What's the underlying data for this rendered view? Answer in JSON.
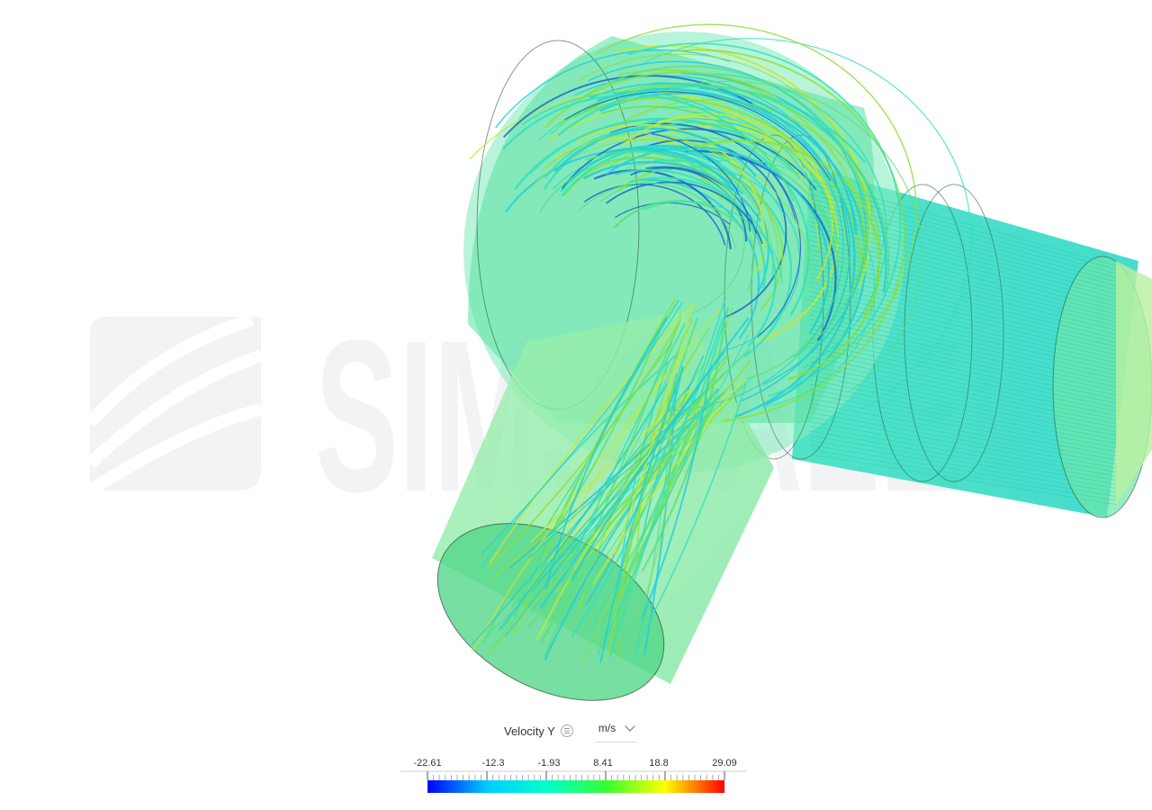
{
  "watermark": {
    "text": "SIMSCALE"
  },
  "legend": {
    "quantity": "Velocity Y",
    "info_icon": "info-icon",
    "unit": "m/s",
    "ticks": [
      "-22.61",
      "-12.3",
      "-1.93",
      "8.41",
      "18.8",
      "29.09"
    ],
    "colormap": [
      "#0000ff",
      "#00ccff",
      "#00ffcc",
      "#33ff33",
      "#ffff00",
      "#ff0000"
    ]
  },
  "scene": {
    "body_color": "#7ff0c0",
    "streamline_colors": [
      "#1a66cc",
      "#22ccdd",
      "#33e0c0",
      "#5ae07a",
      "#8fe03a",
      "#c8e830"
    ]
  }
}
